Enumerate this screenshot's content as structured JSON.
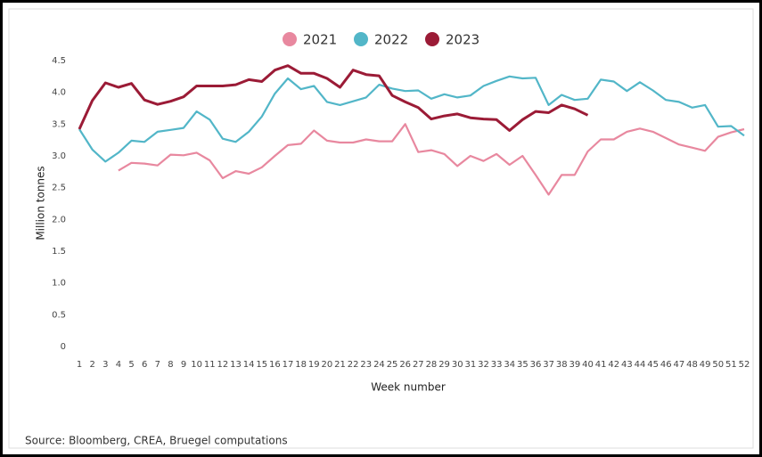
{
  "chart_data": {
    "type": "line",
    "xlabel": "Week number",
    "ylabel": "Million tonnes",
    "source": "Source:  Bloomberg, CREA, Bruegel computations",
    "categories": [
      "1",
      "2",
      "3",
      "4",
      "5",
      "6",
      "7",
      "8",
      "9",
      "10",
      "11",
      "12",
      "13",
      "14",
      "15",
      "16",
      "17",
      "18",
      "19",
      "20",
      "21",
      "22",
      "23",
      "24",
      "25",
      "26",
      "27",
      "28",
      "29",
      "30",
      "31",
      "32",
      "33",
      "34",
      "35",
      "36",
      "37",
      "38",
      "39",
      "40",
      "41",
      "42",
      "43",
      "44",
      "45",
      "46",
      "47",
      "48",
      "49",
      "50",
      "51",
      "52"
    ],
    "ylim": [
      0,
      4.5
    ],
    "yticks": [
      0,
      0.5,
      {
        "value": 1,
        "label": "1.0"
      },
      1.5,
      {
        "value": 2,
        "label": "2.0"
      },
      2.5,
      {
        "value": 3,
        "label": "3.0"
      },
      3.5,
      {
        "value": 4,
        "label": "4.0"
      },
      4.5
    ],
    "grid": false,
    "legend": "top",
    "series": [
      {
        "name": "2021",
        "color": "#e8889f",
        "values": [
          null,
          null,
          null,
          2.77,
          2.89,
          2.88,
          2.85,
          3.02,
          3.01,
          3.05,
          2.93,
          2.65,
          2.76,
          2.72,
          2.82,
          3.0,
          3.17,
          3.19,
          3.4,
          3.24,
          3.21,
          3.21,
          3.26,
          3.23,
          3.23,
          3.5,
          3.06,
          3.09,
          3.03,
          2.84,
          3.0,
          2.92,
          3.03,
          2.86,
          3.0,
          2.7,
          2.39,
          2.7,
          2.7,
          3.07,
          3.26,
          3.26,
          3.38,
          3.43,
          3.38,
          3.28,
          3.18,
          3.13,
          3.08,
          3.3,
          3.37,
          3.42
        ]
      },
      {
        "name": "2022",
        "color": "#52b6c8",
        "values": [
          3.42,
          3.1,
          2.91,
          3.05,
          3.24,
          3.22,
          3.38,
          3.41,
          3.44,
          3.7,
          3.57,
          3.27,
          3.22,
          3.38,
          3.62,
          3.98,
          4.22,
          4.05,
          4.1,
          3.85,
          3.8,
          3.86,
          3.92,
          4.12,
          4.06,
          4.02,
          4.03,
          3.9,
          3.97,
          3.92,
          3.95,
          4.1,
          4.18,
          4.25,
          4.22,
          4.23,
          3.8,
          3.96,
          3.88,
          3.9,
          4.2,
          4.17,
          4.02,
          4.16,
          4.03,
          3.88,
          3.85,
          3.76,
          3.8,
          3.46,
          3.47,
          3.32
        ]
      },
      {
        "name": "2023",
        "color": "#9b1b36",
        "values": [
          3.42,
          3.87,
          4.15,
          4.08,
          4.14,
          3.88,
          3.81,
          3.86,
          3.93,
          4.1,
          4.1,
          4.1,
          4.12,
          4.2,
          4.17,
          4.35,
          4.42,
          4.3,
          4.3,
          4.22,
          4.08,
          4.35,
          4.28,
          4.26,
          3.95,
          3.85,
          3.76,
          3.58,
          3.63,
          3.66,
          3.6,
          3.58,
          3.57,
          3.4,
          3.57,
          3.7,
          3.68,
          3.8,
          3.74,
          3.64,
          null,
          null,
          null,
          null,
          null,
          null,
          null,
          null,
          null,
          null,
          null,
          null
        ]
      }
    ]
  }
}
